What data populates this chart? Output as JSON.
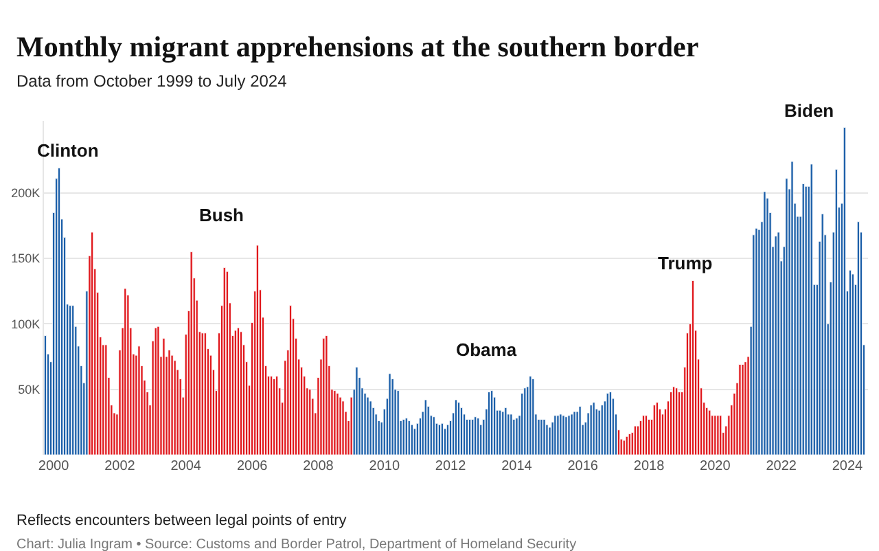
{
  "chart_data": {
    "type": "bar",
    "title": "Monthly migrant apprehensions at the southern border",
    "subtitle": "Data from October 1999 to July 2024",
    "annotations": [
      "Reflects encounters between legal points of entry",
      "Chart: Julia Ingram • Source: Customs and Border Patrol, Department of Homeland Security"
    ],
    "xlim": [
      "1999-09-16",
      "2024-08-16"
    ],
    "xticks": [
      {
        "value": "2000",
        "label": "2000"
      },
      {
        "value": "2002",
        "label": "2002"
      },
      {
        "value": "2004",
        "label": "2004"
      },
      {
        "value": "2006",
        "label": "2006"
      },
      {
        "value": "2008",
        "label": "2008"
      },
      {
        "value": "2010",
        "label": "2010"
      },
      {
        "value": "2012",
        "label": "2012"
      },
      {
        "value": "2014",
        "label": "2014"
      },
      {
        "value": "2016",
        "label": "2016"
      },
      {
        "value": "2018",
        "label": "2018"
      },
      {
        "value": "2020",
        "label": "2020"
      },
      {
        "value": "2022",
        "label": "2022"
      },
      {
        "value": "2024",
        "label": "2024"
      }
    ],
    "ylim": [
      0,
      255
    ],
    "yticks": [
      {
        "value": 50,
        "label": "50K"
      },
      {
        "value": 100,
        "label": "100K"
      },
      {
        "value": 150,
        "label": "150K"
      },
      {
        "value": 200,
        "label": "200K"
      }
    ],
    "grid": "y",
    "series": [
      {
        "name": "Clinton",
        "color": "#1a5ea8",
        "x": [
          "1999-10",
          "1999-11",
          "1999-12",
          "2000-01",
          "2000-02",
          "2000-03",
          "2000-04",
          "2000-05",
          "2000-06",
          "2000-07",
          "2000-08",
          "2000-09",
          "2000-10",
          "2000-11",
          "2000-12",
          "2001-01"
        ],
        "values": [
          91,
          77,
          71,
          185,
          211,
          219,
          180,
          166,
          115,
          114,
          114,
          98,
          83,
          68,
          55,
          125
        ]
      },
      {
        "name": "Bush",
        "color": "#e0161b",
        "x": [
          "2001-02",
          "2001-03",
          "2001-04",
          "2001-05",
          "2001-06",
          "2001-07",
          "2001-08",
          "2001-09",
          "2001-10",
          "2001-11",
          "2001-12",
          "2002-01",
          "2002-02",
          "2002-03",
          "2002-04",
          "2002-05",
          "2002-06",
          "2002-07",
          "2002-08",
          "2002-09",
          "2002-10",
          "2002-11",
          "2002-12",
          "2003-01",
          "2003-02",
          "2003-03",
          "2003-04",
          "2003-05",
          "2003-06",
          "2003-07",
          "2003-08",
          "2003-09",
          "2003-10",
          "2003-11",
          "2003-12",
          "2004-01",
          "2004-02",
          "2004-03",
          "2004-04",
          "2004-05",
          "2004-06",
          "2004-07",
          "2004-08",
          "2004-09",
          "2004-10",
          "2004-11",
          "2004-12",
          "2005-01",
          "2005-02",
          "2005-03",
          "2005-04",
          "2005-05",
          "2005-06",
          "2005-07",
          "2005-08",
          "2005-09",
          "2005-10",
          "2005-11",
          "2005-12",
          "2006-01",
          "2006-02",
          "2006-03",
          "2006-04",
          "2006-05",
          "2006-06",
          "2006-07",
          "2006-08",
          "2006-09",
          "2006-10",
          "2006-11",
          "2006-12",
          "2007-01",
          "2007-02",
          "2007-03",
          "2007-04",
          "2007-05",
          "2007-06",
          "2007-07",
          "2007-08",
          "2007-09",
          "2007-10",
          "2007-11",
          "2007-12",
          "2008-01",
          "2008-02",
          "2008-03",
          "2008-04",
          "2008-05",
          "2008-06",
          "2008-07",
          "2008-08",
          "2008-09",
          "2008-10",
          "2008-11",
          "2008-12",
          "2009-01"
        ],
        "values": [
          152,
          170,
          142,
          124,
          90,
          84,
          84,
          59,
          38,
          32,
          31,
          80,
          97,
          127,
          122,
          97,
          77,
          76,
          83,
          68,
          57,
          48,
          38,
          87,
          97,
          98,
          75,
          89,
          75,
          80,
          76,
          72,
          65,
          58,
          44,
          92,
          110,
          155,
          135,
          118,
          94,
          93,
          93,
          81,
          76,
          65,
          49,
          93,
          114,
          143,
          140,
          116,
          91,
          95,
          97,
          94,
          84,
          71,
          53,
          101,
          125,
          160,
          126,
          105,
          68,
          60,
          60,
          58,
          60,
          51,
          40,
          72,
          80,
          114,
          104,
          89,
          73,
          67,
          60,
          51,
          50,
          43,
          32,
          59,
          73,
          89,
          91,
          68,
          50,
          49,
          47,
          44,
          41,
          33,
          26,
          44
        ]
      },
      {
        "name": "Obama",
        "color": "#1a5ea8",
        "x": [
          "2009-02",
          "2009-03",
          "2009-04",
          "2009-05",
          "2009-06",
          "2009-07",
          "2009-08",
          "2009-09",
          "2009-10",
          "2009-11",
          "2009-12",
          "2010-01",
          "2010-02",
          "2010-03",
          "2010-04",
          "2010-05",
          "2010-06",
          "2010-07",
          "2010-08",
          "2010-09",
          "2010-10",
          "2010-11",
          "2010-12",
          "2011-01",
          "2011-02",
          "2011-03",
          "2011-04",
          "2011-05",
          "2011-06",
          "2011-07",
          "2011-08",
          "2011-09",
          "2011-10",
          "2011-11",
          "2011-12",
          "2012-01",
          "2012-02",
          "2012-03",
          "2012-04",
          "2012-05",
          "2012-06",
          "2012-07",
          "2012-08",
          "2012-09",
          "2012-10",
          "2012-11",
          "2012-12",
          "2013-01",
          "2013-02",
          "2013-03",
          "2013-04",
          "2013-05",
          "2013-06",
          "2013-07",
          "2013-08",
          "2013-09",
          "2013-10",
          "2013-11",
          "2013-12",
          "2014-01",
          "2014-02",
          "2014-03",
          "2014-04",
          "2014-05",
          "2014-06",
          "2014-07",
          "2014-08",
          "2014-09",
          "2014-10",
          "2014-11",
          "2014-12",
          "2015-01",
          "2015-02",
          "2015-03",
          "2015-04",
          "2015-05",
          "2015-06",
          "2015-07",
          "2015-08",
          "2015-09",
          "2015-10",
          "2015-11",
          "2015-12",
          "2016-01",
          "2016-02",
          "2016-03",
          "2016-04",
          "2016-05",
          "2016-06",
          "2016-07",
          "2016-08",
          "2016-09",
          "2016-10",
          "2016-11",
          "2016-12",
          "2017-01"
        ],
        "values": [
          50,
          67,
          59,
          51,
          47,
          44,
          41,
          36,
          31,
          26,
          25,
          35,
          43,
          62,
          58,
          50,
          49,
          26,
          27,
          28,
          26,
          23,
          20,
          24,
          28,
          33,
          42,
          37,
          30,
          29,
          24,
          23,
          24,
          20,
          23,
          26,
          32,
          42,
          40,
          36,
          31,
          27,
          27,
          27,
          29,
          28,
          23,
          27,
          35,
          48,
          49,
          44,
          34,
          34,
          33,
          36,
          31,
          31,
          27,
          28,
          30,
          47,
          51,
          52,
          60,
          58,
          31,
          27,
          27,
          27,
          23,
          21,
          25,
          30,
          30,
          31,
          30,
          29,
          30,
          31,
          33,
          33,
          37,
          23,
          25,
          32,
          38,
          40,
          35,
          34,
          38,
          41,
          47,
          48,
          43,
          31
        ]
      },
      {
        "name": "Trump",
        "color": "#e0161b",
        "x": [
          "2017-02",
          "2017-03",
          "2017-04",
          "2017-05",
          "2017-06",
          "2017-07",
          "2017-08",
          "2017-09",
          "2017-10",
          "2017-11",
          "2017-12",
          "2018-01",
          "2018-02",
          "2018-03",
          "2018-04",
          "2018-05",
          "2018-06",
          "2018-07",
          "2018-08",
          "2018-09",
          "2018-10",
          "2018-11",
          "2018-12",
          "2019-01",
          "2019-02",
          "2019-03",
          "2019-04",
          "2019-05",
          "2019-06",
          "2019-07",
          "2019-08",
          "2019-09",
          "2019-10",
          "2019-11",
          "2019-12",
          "2020-01",
          "2020-02",
          "2020-03",
          "2020-04",
          "2020-05",
          "2020-06",
          "2020-07",
          "2020-08",
          "2020-09",
          "2020-10",
          "2020-11",
          "2020-12",
          "2021-01"
        ],
        "values": [
          19,
          12,
          11,
          14,
          16,
          17,
          22,
          22,
          26,
          30,
          30,
          27,
          27,
          38,
          40,
          35,
          31,
          35,
          41,
          48,
          52,
          51,
          48,
          48,
          67,
          93,
          100,
          133,
          95,
          73,
          51,
          40,
          36,
          34,
          30,
          30,
          30,
          30,
          17,
          22,
          30,
          38,
          47,
          55,
          69,
          69,
          71,
          75
        ]
      },
      {
        "name": "Biden",
        "color": "#1a5ea8",
        "x": [
          "2021-02",
          "2021-03",
          "2021-04",
          "2021-05",
          "2021-06",
          "2021-07",
          "2021-08",
          "2021-09",
          "2021-10",
          "2021-11",
          "2021-12",
          "2022-01",
          "2022-02",
          "2022-03",
          "2022-04",
          "2022-05",
          "2022-06",
          "2022-07",
          "2022-08",
          "2022-09",
          "2022-10",
          "2022-11",
          "2022-12",
          "2023-01",
          "2023-02",
          "2023-03",
          "2023-04",
          "2023-05",
          "2023-06",
          "2023-07",
          "2023-08",
          "2023-09",
          "2023-10",
          "2023-11",
          "2023-12",
          "2024-01",
          "2024-02",
          "2024-03",
          "2024-04",
          "2024-05",
          "2024-06",
          "2024-07"
        ],
        "values": [
          98,
          168,
          173,
          172,
          178,
          201,
          196,
          185,
          159,
          167,
          170,
          148,
          159,
          211,
          203,
          224,
          192,
          182,
          182,
          207,
          205,
          205,
          222,
          130,
          130,
          163,
          184,
          168,
          100,
          132,
          170,
          218,
          189,
          192,
          250,
          125,
          141,
          138,
          130,
          178,
          170,
          84
        ]
      }
    ]
  }
}
